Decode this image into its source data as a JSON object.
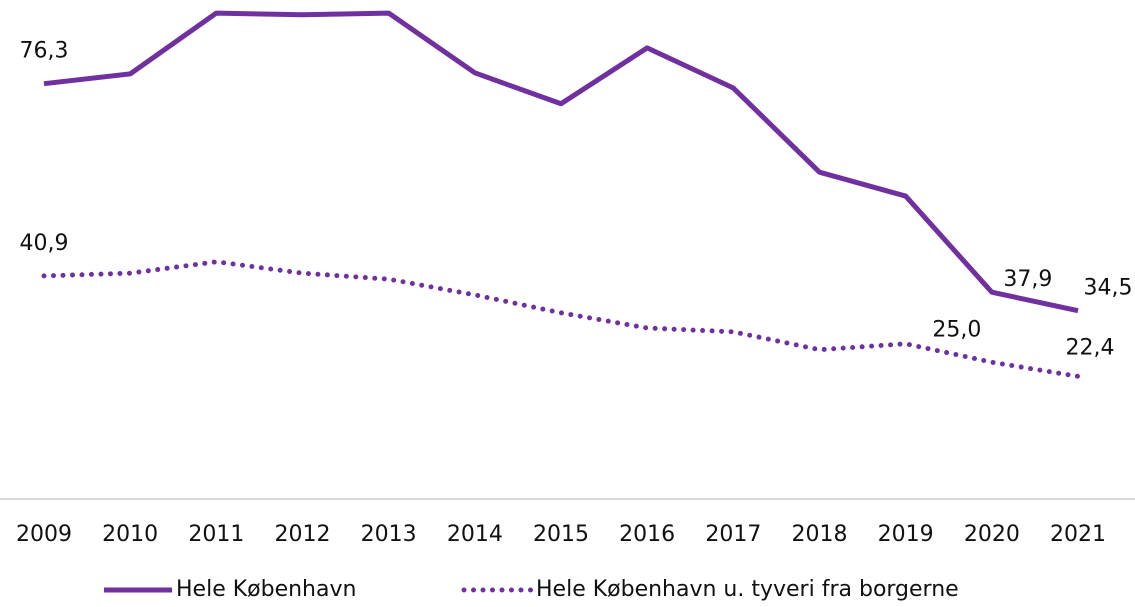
{
  "chart_data": {
    "type": "line",
    "categories": [
      "2009",
      "2010",
      "2011",
      "2012",
      "2013",
      "2014",
      "2015",
      "2016",
      "2017",
      "2018",
      "2019",
      "2020",
      "2021"
    ],
    "series": [
      {
        "name": "Hele København",
        "color": "#7030a0",
        "style": "solid",
        "values": [
          76.3,
          78.1,
          89.3,
          89.0,
          89.3,
          78.3,
          72.6,
          82.9,
          75.5,
          60.0,
          55.6,
          37.9,
          34.5
        ],
        "value_labels": [
          "76,3",
          null,
          null,
          null,
          null,
          null,
          null,
          null,
          null,
          null,
          null,
          "37,9",
          "34,5"
        ]
      },
      {
        "name": "Hele København u. tyveri fra borgerne",
        "color": "#7030a0",
        "style": "dotted",
        "values": [
          40.9,
          41.4,
          43.5,
          41.4,
          40.3,
          37.4,
          34.1,
          31.3,
          30.6,
          27.3,
          28.4,
          25.0,
          22.4
        ],
        "value_labels": [
          "40,9",
          null,
          null,
          null,
          null,
          null,
          null,
          null,
          null,
          null,
          null,
          "25,0",
          "22,4"
        ]
      }
    ]
  }
}
